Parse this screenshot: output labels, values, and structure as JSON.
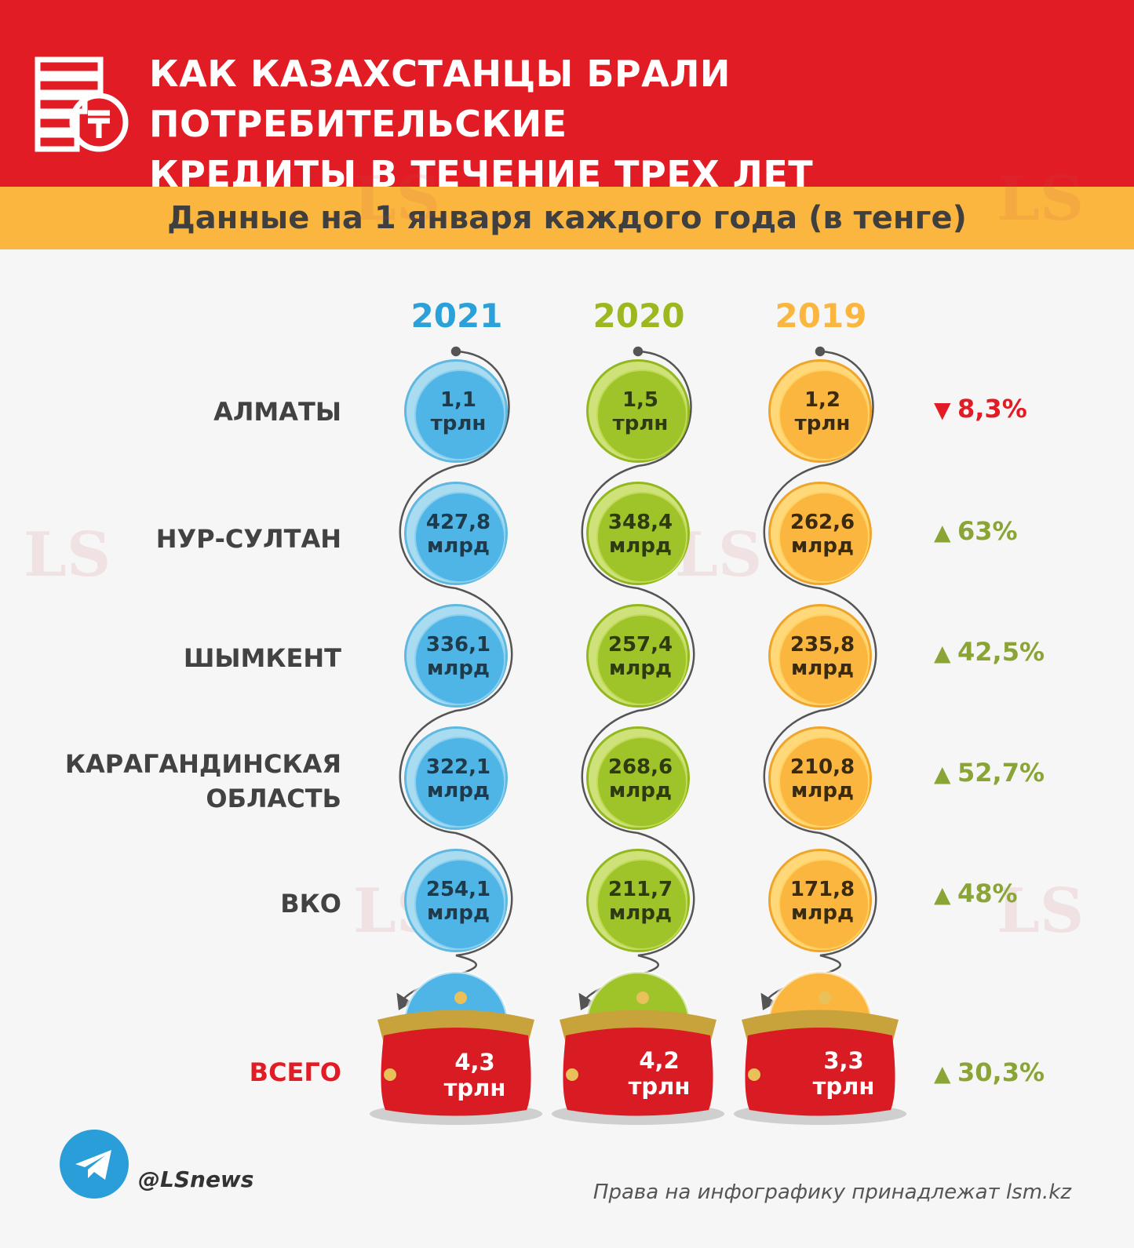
{
  "header": {
    "title_line1": "КАК КАЗАХСТАНЦЫ БРАЛИ ПОТРЕБИТЕЛЬСКИЕ",
    "title_line2": "КРЕДИТЫ В ТЕЧЕНИЕ ТРЕХ ЛЕТ",
    "subtitle": "Данные на 1 января каждого года (в тенге)",
    "icon": "coins-tenge-icon"
  },
  "years": [
    "2021",
    "2020",
    "2019"
  ],
  "colors": {
    "header": "#e21c24",
    "subheader": "#fbb63f",
    "y2021": "#2aa1d8",
    "y2020": "#9bb81f",
    "y2019": "#fbb63f",
    "down": "#e21c24",
    "up": "#8aa436"
  },
  "rows": [
    {
      "label": "АЛМАТЫ",
      "label2": "",
      "values": [
        [
          "1,1",
          "трлн"
        ],
        [
          "1,5",
          "трлн"
        ],
        [
          "1,2",
          "трлн"
        ]
      ],
      "change": "8,3%",
      "direction": "down"
    },
    {
      "label": "НУР-СУЛТАН",
      "label2": "",
      "values": [
        [
          "427,8",
          "млрд"
        ],
        [
          "348,4",
          "млрд"
        ],
        [
          "262,6",
          "млрд"
        ]
      ],
      "change": "63%",
      "direction": "up"
    },
    {
      "label": "ШЫМКЕНТ",
      "label2": "",
      "values": [
        [
          "336,1",
          "млрд"
        ],
        [
          "257,4",
          "млрд"
        ],
        [
          "235,8",
          "млрд"
        ]
      ],
      "change": "42,5%",
      "direction": "up"
    },
    {
      "label": "КАРАГАНДИНСКАЯ",
      "label2": "ОБЛАСТЬ",
      "values": [
        [
          "322,1",
          "млрд"
        ],
        [
          "268,6",
          "млрд"
        ],
        [
          "210,8",
          "млрд"
        ]
      ],
      "change": "52,7%",
      "direction": "up"
    },
    {
      "label": "ВКО",
      "label2": "",
      "values": [
        [
          "254,1",
          "млрд"
        ],
        [
          "211,7",
          "млрд"
        ],
        [
          "171,8",
          "млрд"
        ]
      ],
      "change": "48%",
      "direction": "up"
    }
  ],
  "total": {
    "label": "ВСЕГО",
    "values": [
      [
        "4,3",
        "трлн"
      ],
      [
        "4,2",
        "трлн"
      ],
      [
        "3,3",
        "трлн"
      ]
    ],
    "change": "30,3%",
    "direction": "up"
  },
  "footer": {
    "handle": "@LSnews",
    "copyright": "Права на инфографику принадлежат lsm.kz",
    "icon": "telegram-icon"
  },
  "watermark": "LS"
}
